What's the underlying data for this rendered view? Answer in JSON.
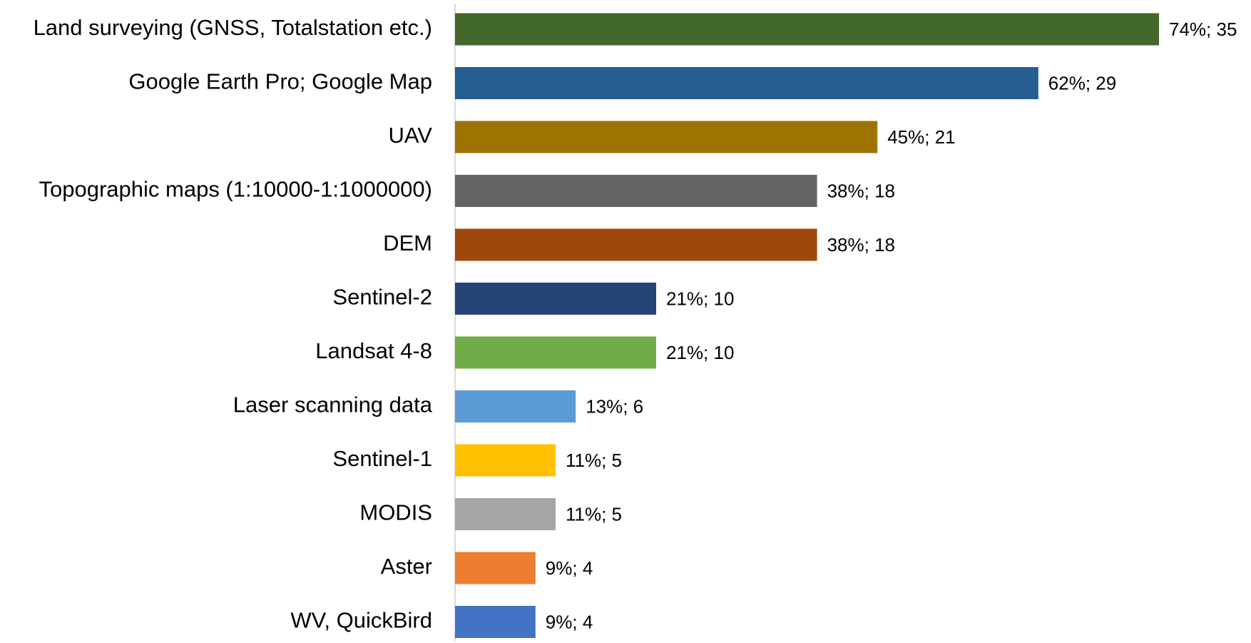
{
  "chart_data": {
    "type": "hbar",
    "categories": [
      "Land surveying (GNSS, Totalstation etc.)",
      "Google Earth Pro; Google Map",
      "UAV",
      "Topographic maps (1:10000-1:1000000)",
      "DEM",
      "Sentinel-2",
      "Landsat 4-8",
      "Laser scanning data",
      "Sentinel-1",
      "MODIS",
      "Aster",
      "WV, QuickBird"
    ],
    "values": [
      35,
      29,
      21,
      18,
      18,
      10,
      10,
      6,
      5,
      5,
      4,
      4
    ],
    "value_labels": [
      "74%; 35",
      "62%; 29",
      "45%; 21",
      "38%; 18",
      "38%; 18",
      "21%; 10",
      "21%; 10",
      "13%; 6",
      "11%; 5",
      "11%; 5",
      "9%; 4",
      "9%; 4"
    ],
    "colors": [
      "#43682b",
      "#255e91",
      "#9e7300",
      "#636363",
      "#9e480e",
      "#264478",
      "#70ad47",
      "#5b9bd5",
      "#ffc000",
      "#a5a5a5",
      "#ed7d31",
      "#4472c4"
    ]
  }
}
